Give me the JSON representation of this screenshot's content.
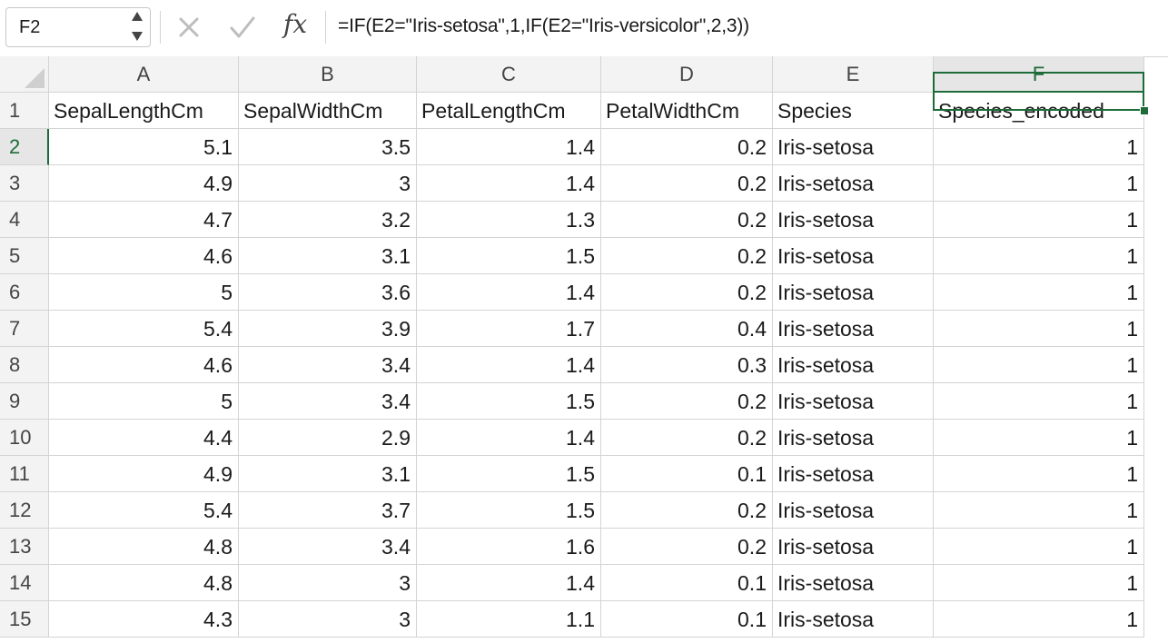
{
  "name_box": {
    "value": "F2"
  },
  "formula_bar": {
    "fx_label": "fx",
    "formula": "=IF(E2=\"Iris-setosa\",1,IF(E2=\"Iris-versicolor\",2,3))"
  },
  "columns": [
    "A",
    "B",
    "C",
    "D",
    "E",
    "F"
  ],
  "selected_column": "F",
  "selected_row": "2",
  "rows": [
    {
      "num": "1",
      "cells": [
        "SepalLengthCm",
        "SepalWidthCm",
        "PetalLengthCm",
        "PetalWidthCm",
        "Species",
        "Species_encoded"
      ]
    },
    {
      "num": "2",
      "cells": [
        "5.1",
        "3.5",
        "1.4",
        "0.2",
        "Iris-setosa",
        "1"
      ]
    },
    {
      "num": "3",
      "cells": [
        "4.9",
        "3",
        "1.4",
        "0.2",
        "Iris-setosa",
        "1"
      ]
    },
    {
      "num": "4",
      "cells": [
        "4.7",
        "3.2",
        "1.3",
        "0.2",
        "Iris-setosa",
        "1"
      ]
    },
    {
      "num": "5",
      "cells": [
        "4.6",
        "3.1",
        "1.5",
        "0.2",
        "Iris-setosa",
        "1"
      ]
    },
    {
      "num": "6",
      "cells": [
        "5",
        "3.6",
        "1.4",
        "0.2",
        "Iris-setosa",
        "1"
      ]
    },
    {
      "num": "7",
      "cells": [
        "5.4",
        "3.9",
        "1.7",
        "0.4",
        "Iris-setosa",
        "1"
      ]
    },
    {
      "num": "8",
      "cells": [
        "4.6",
        "3.4",
        "1.4",
        "0.3",
        "Iris-setosa",
        "1"
      ]
    },
    {
      "num": "9",
      "cells": [
        "5",
        "3.4",
        "1.5",
        "0.2",
        "Iris-setosa",
        "1"
      ]
    },
    {
      "num": "10",
      "cells": [
        "4.4",
        "2.9",
        "1.4",
        "0.2",
        "Iris-setosa",
        "1"
      ]
    },
    {
      "num": "11",
      "cells": [
        "4.9",
        "3.1",
        "1.5",
        "0.1",
        "Iris-setosa",
        "1"
      ]
    },
    {
      "num": "12",
      "cells": [
        "5.4",
        "3.7",
        "1.5",
        "0.2",
        "Iris-setosa",
        "1"
      ]
    },
    {
      "num": "13",
      "cells": [
        "4.8",
        "3.4",
        "1.6",
        "0.2",
        "Iris-setosa",
        "1"
      ]
    },
    {
      "num": "14",
      "cells": [
        "4.8",
        "3",
        "1.4",
        "0.1",
        "Iris-setosa",
        "1"
      ]
    },
    {
      "num": "15",
      "cells": [
        "4.3",
        "3",
        "1.1",
        "0.1",
        "Iris-setosa",
        "1"
      ]
    }
  ],
  "colors": {
    "accent": "#1e6b3a",
    "header_bg": "#f3f3f3",
    "gridline": "#d4d4d4"
  },
  "icons": {
    "cancel": "x-cancel-icon",
    "confirm": "checkmark-icon",
    "function": "fx-icon",
    "stepper": "up-down-stepper-icon"
  }
}
